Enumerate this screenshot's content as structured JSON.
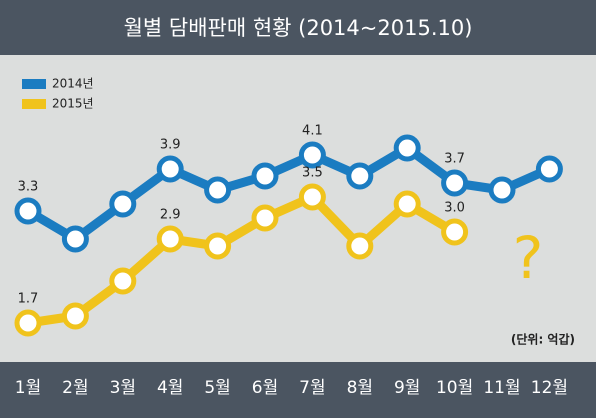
{
  "chart_data": {
    "type": "line",
    "title": "월별 담배판매 현황 (2014~2015.10)",
    "unit": "(단위: 억갑)",
    "annotation": "?",
    "categories": [
      "1월",
      "2월",
      "3월",
      "4월",
      "5월",
      "6월",
      "7월",
      "8월",
      "9월",
      "10월",
      "11월",
      "12월"
    ],
    "series": [
      {
        "name": "2014년",
        "color": "#1b7cc1",
        "values": [
          3.3,
          2.9,
          3.4,
          3.9,
          3.6,
          3.8,
          4.1,
          3.8,
          4.2,
          3.7,
          3.6,
          3.9
        ],
        "value_labels": [
          "3.3",
          null,
          null,
          "3.9",
          null,
          null,
          "4.1",
          null,
          null,
          "3.7",
          null,
          null
        ]
      },
      {
        "name": "2015년",
        "color": "#f0c31c",
        "values": [
          1.7,
          1.8,
          2.3,
          2.9,
          2.8,
          3.2,
          3.5,
          2.8,
          3.4,
          3.0,
          null,
          null
        ],
        "value_labels": [
          "1.7",
          null,
          null,
          "2.9",
          null,
          null,
          "3.5",
          null,
          null,
          "3.0",
          null,
          null
        ]
      }
    ],
    "legend": "top-left"
  }
}
